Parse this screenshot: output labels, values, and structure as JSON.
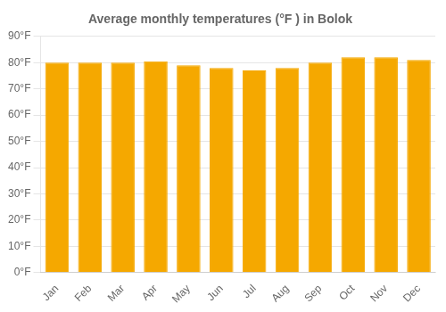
{
  "chart_data": {
    "type": "bar",
    "title": "Average monthly temperatures (°F ) in Bolok",
    "categories": [
      "Jan",
      "Feb",
      "Mar",
      "Apr",
      "May",
      "Jun",
      "Jul",
      "Aug",
      "Sep",
      "Oct",
      "Nov",
      "Dec"
    ],
    "values": [
      80,
      80,
      80,
      80.5,
      79,
      78,
      77,
      78,
      80,
      82,
      82,
      81
    ],
    "color": "#F5A800",
    "ylim": [
      0,
      90
    ],
    "yticks": [
      {
        "value": 0,
        "label": "0°F"
      },
      {
        "value": 10,
        "label": "10°F"
      },
      {
        "value": 20,
        "label": "20°F"
      },
      {
        "value": 30,
        "label": "30°F"
      },
      {
        "value": 40,
        "label": "40°F"
      },
      {
        "value": 50,
        "label": "50°F"
      },
      {
        "value": 60,
        "label": "60°F"
      },
      {
        "value": 70,
        "label": "70°F"
      },
      {
        "value": 80,
        "label": "80°F"
      },
      {
        "value": 90,
        "label": "90°F"
      }
    ],
    "grid": true
  }
}
